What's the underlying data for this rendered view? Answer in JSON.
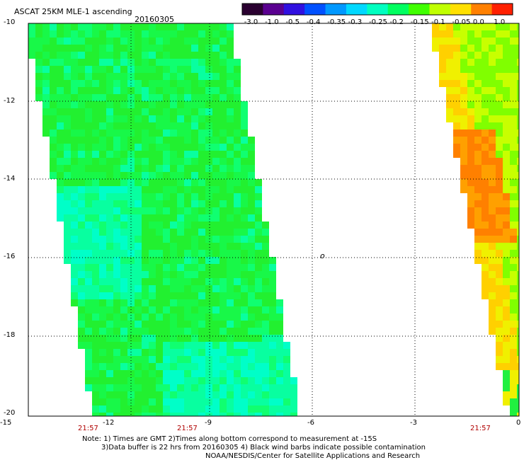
{
  "header": {
    "title": "ASCAT 25KM MLE-1 ascending",
    "date": "20160305"
  },
  "colorbar": {
    "labels": [
      "-3.0",
      "-1.0",
      "-0.5",
      "-0.4",
      "-0.35",
      "-0.3",
      "-0.25",
      "-0.2",
      "-0.15",
      "-0.1",
      "-0.05",
      "0.0",
      "1.0"
    ],
    "colors": [
      "#2a0030",
      "#5a0090",
      "#3010e0",
      "#0050ff",
      "#0098ff",
      "#00d8ff",
      "#00ffc0",
      "#00ff60",
      "#40ff00",
      "#c0ff00",
      "#ffe000",
      "#ff8000",
      "#ff2000"
    ]
  },
  "axes": {
    "y_ticks": [
      "-10",
      "-12",
      "-14",
      "-16",
      "-18",
      "-20"
    ],
    "x_ticks": [
      "-15",
      "-12",
      "-9",
      "-6",
      "-3",
      "0"
    ],
    "grid": "dotted"
  },
  "map": {
    "marker_label": "o",
    "times": [
      "21:57",
      "21:57",
      "21:57"
    ],
    "swath_left_colors": [
      "#22f030",
      "#18f848",
      "#10ff70",
      "#08ffa0",
      "#00ffc8"
    ],
    "swath_right_colors": [
      "#80ff00",
      "#c8ff00",
      "#f0f000",
      "#ffd000",
      "#ffa000",
      "#ff8000",
      "#20f040"
    ]
  },
  "footer": {
    "note_line1": "Note: 1) Times are GMT 2)Times along bottom correspond to measurement at -15S",
    "note_line2": "3)Data buffer is 22 hrs from 20160305 4) Black wind barbs indicate possible contamination",
    "note_line3": "NOAA/NESDIS/Center for Satellite Applications and Research"
  }
}
